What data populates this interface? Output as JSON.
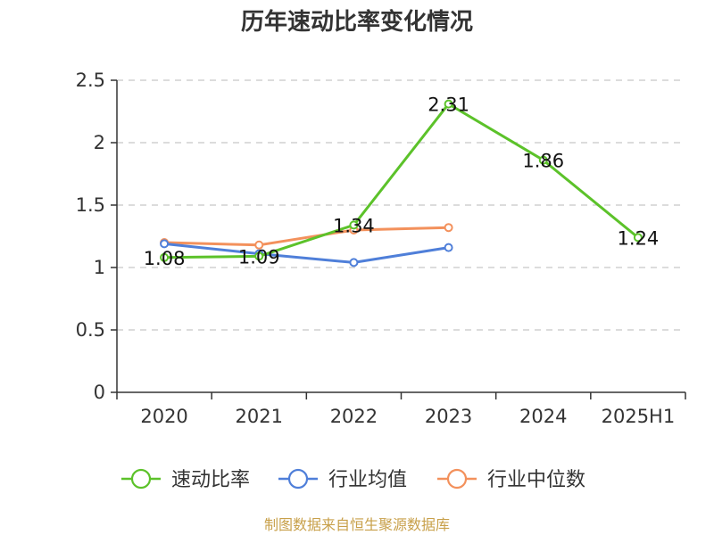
{
  "chart_data": {
    "type": "line",
    "title": "历年速动比率变化情况",
    "categories": [
      "2020",
      "2021",
      "2022",
      "2023",
      "2024",
      "2025H1"
    ],
    "ylim": [
      0,
      2.5
    ],
    "yticks": [
      "0",
      "0.5",
      "1",
      "1.5",
      "2",
      "2.5"
    ],
    "grid": true,
    "legend_position": "bottom",
    "series": [
      {
        "name": "速动比率",
        "color": "#5cc22a",
        "values": [
          1.08,
          1.09,
          1.34,
          2.31,
          1.86,
          1.24
        ],
        "labels": [
          "1.08",
          "1.09",
          "1.34",
          "2.31",
          "1.86",
          "1.24"
        ]
      },
      {
        "name": "行业均值",
        "color": "#4f7fd9",
        "values": [
          1.19,
          1.11,
          1.04,
          1.16,
          null,
          null
        ]
      },
      {
        "name": "行业中位数",
        "color": "#f3915c",
        "values": [
          1.2,
          1.18,
          1.3,
          1.32,
          null,
          null
        ]
      }
    ]
  },
  "source": "制图数据来自恒生聚源数据库"
}
